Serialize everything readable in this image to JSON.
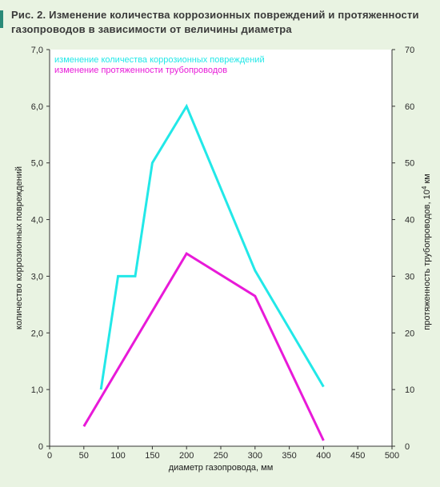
{
  "figure": {
    "title_line1": "Рис. 2. Изменение количества коррозионных повреждений и протяженности",
    "title_line2": "газопроводов в зависимости от величины диаметра"
  },
  "chart_data": {
    "type": "line",
    "title": "Рис. 2. Изменение количества коррозионных повреждений и протяженности газопроводов в зависимости от величины диаметра",
    "xlabel": "диаметр газопровода, мм",
    "ylabel_left": "количество коррозионных повреждений",
    "ylabel_right_main": "протяженность трубопроводов, 10",
    "ylabel_right_sup": "4",
    "ylabel_right_unit": " км",
    "xlim": [
      0,
      500
    ],
    "ylim_left": [
      0,
      7
    ],
    "ylim_right": [
      0,
      70
    ],
    "x_ticks": [
      "0",
      "50",
      "100",
      "150",
      "200",
      "250",
      "300",
      "350",
      "400",
      "450",
      "500"
    ],
    "y_left_ticks": [
      "0",
      "1,0",
      "2,0",
      "3,0",
      "4,0",
      "5,0",
      "6,0",
      "7,0"
    ],
    "y_right_ticks": [
      "0",
      "10",
      "20",
      "30",
      "40",
      "50",
      "60",
      "70"
    ],
    "grid": false,
    "legend_position": "top-left",
    "series": [
      {
        "name": "изменение количества коррозионных повреждений",
        "color": "#22e8e8",
        "axis": "left",
        "points": [
          [
            75,
            1.0
          ],
          [
            100,
            3.0
          ],
          [
            125,
            3.0
          ],
          [
            150,
            5.0
          ],
          [
            200,
            6.0
          ],
          [
            300,
            3.1
          ],
          [
            400,
            1.05
          ]
        ]
      },
      {
        "name": "изменение протяженности трубопроводов",
        "color": "#e81ad8",
        "axis": "right",
        "points": [
          [
            50,
            3.5
          ],
          [
            200,
            34.0
          ],
          [
            300,
            26.5
          ],
          [
            400,
            1.0
          ]
        ]
      }
    ]
  }
}
